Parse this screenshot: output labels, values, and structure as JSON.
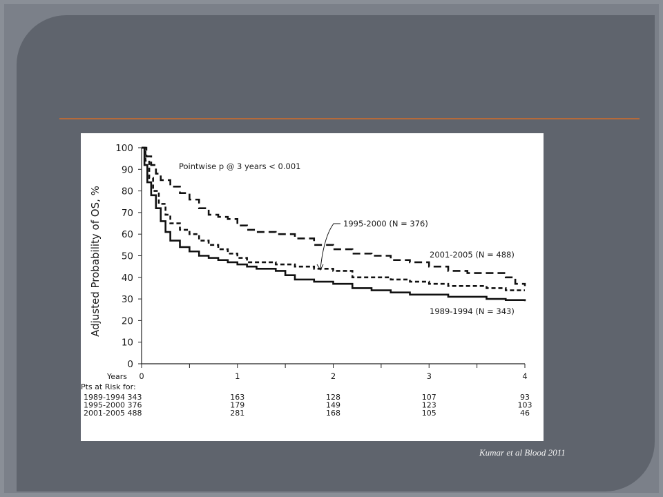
{
  "slide": {
    "citation": "Kumar et al Blood 2011"
  },
  "chart_data": {
    "type": "line",
    "title": "",
    "xlabel": "Years",
    "ylabel": "Adjusted Probability of OS, %",
    "xlim": [
      0,
      4
    ],
    "ylim": [
      0,
      100
    ],
    "x_ticks": [
      0,
      1,
      2,
      3,
      4
    ],
    "y_ticks": [
      0,
      10,
      20,
      30,
      40,
      50,
      60,
      70,
      80,
      90,
      100
    ],
    "annotation": "Pointwise p @ 3 years < 0.001",
    "series": [
      {
        "name": "2001-2005 (N = 488)",
        "style": "dashed",
        "points": [
          [
            0,
            100
          ],
          [
            0.05,
            96
          ],
          [
            0.1,
            92
          ],
          [
            0.15,
            88
          ],
          [
            0.2,
            85
          ],
          [
            0.3,
            82
          ],
          [
            0.4,
            79
          ],
          [
            0.5,
            76
          ],
          [
            0.6,
            72
          ],
          [
            0.7,
            69
          ],
          [
            0.8,
            68
          ],
          [
            0.9,
            67
          ],
          [
            1.0,
            64
          ],
          [
            1.1,
            62
          ],
          [
            1.2,
            61
          ],
          [
            1.4,
            60
          ],
          [
            1.6,
            58
          ],
          [
            1.8,
            55
          ],
          [
            2.0,
            53
          ],
          [
            2.2,
            51
          ],
          [
            2.4,
            50
          ],
          [
            2.6,
            48
          ],
          [
            2.8,
            47
          ],
          [
            3.0,
            45
          ],
          [
            3.2,
            43
          ],
          [
            3.4,
            42
          ],
          [
            3.6,
            42
          ],
          [
            3.8,
            40
          ],
          [
            3.9,
            37
          ],
          [
            4.0,
            36
          ]
        ]
      },
      {
        "name": "1995-2000 (N = 376)",
        "style": "short-dashed",
        "points": [
          [
            0,
            100
          ],
          [
            0.04,
            94
          ],
          [
            0.08,
            86
          ],
          [
            0.12,
            80
          ],
          [
            0.18,
            74
          ],
          [
            0.25,
            69
          ],
          [
            0.3,
            65
          ],
          [
            0.4,
            62
          ],
          [
            0.5,
            60
          ],
          [
            0.6,
            57
          ],
          [
            0.7,
            55
          ],
          [
            0.8,
            53
          ],
          [
            0.9,
            51
          ],
          [
            1.0,
            49
          ],
          [
            1.1,
            47
          ],
          [
            1.2,
            47
          ],
          [
            1.4,
            46
          ],
          [
            1.6,
            45
          ],
          [
            1.8,
            44
          ],
          [
            2.0,
            43
          ],
          [
            2.2,
            40
          ],
          [
            2.4,
            40
          ],
          [
            2.6,
            39
          ],
          [
            2.8,
            38
          ],
          [
            3.0,
            37
          ],
          [
            3.2,
            36
          ],
          [
            3.4,
            36
          ],
          [
            3.6,
            35
          ],
          [
            3.8,
            34
          ],
          [
            4.0,
            34
          ]
        ]
      },
      {
        "name": "1989-1994 (N = 343)",
        "style": "solid",
        "points": [
          [
            0,
            100
          ],
          [
            0.03,
            92
          ],
          [
            0.06,
            84
          ],
          [
            0.1,
            78
          ],
          [
            0.15,
            72
          ],
          [
            0.2,
            66
          ],
          [
            0.25,
            61
          ],
          [
            0.3,
            57
          ],
          [
            0.4,
            54
          ],
          [
            0.5,
            52
          ],
          [
            0.6,
            50
          ],
          [
            0.7,
            49
          ],
          [
            0.8,
            48
          ],
          [
            0.9,
            47
          ],
          [
            1.0,
            46
          ],
          [
            1.1,
            45
          ],
          [
            1.2,
            44
          ],
          [
            1.4,
            43
          ],
          [
            1.5,
            41
          ],
          [
            1.6,
            39
          ],
          [
            1.8,
            38
          ],
          [
            2.0,
            37
          ],
          [
            2.2,
            35
          ],
          [
            2.4,
            34
          ],
          [
            2.6,
            33
          ],
          [
            2.8,
            32
          ],
          [
            3.0,
            32
          ],
          [
            3.2,
            31
          ],
          [
            3.4,
            31
          ],
          [
            3.6,
            30
          ],
          [
            3.8,
            29.5
          ],
          [
            4.0,
            29
          ]
        ]
      }
    ],
    "arrow_label": "1995-2000 (N = 376)",
    "risk_table": {
      "title": "Pts at Risk for:",
      "columns": [
        "0",
        "1",
        "2",
        "3",
        "4"
      ],
      "rows": [
        {
          "label": "1989-1994",
          "values": [
            "343",
            "163",
            "128",
            "107",
            "93"
          ]
        },
        {
          "label": "1995-2000",
          "values": [
            "376",
            "179",
            "149",
            "123",
            "103"
          ]
        },
        {
          "label": "2001-2005",
          "values": [
            "488",
            "281",
            "168",
            "105",
            "46"
          ]
        }
      ]
    }
  }
}
